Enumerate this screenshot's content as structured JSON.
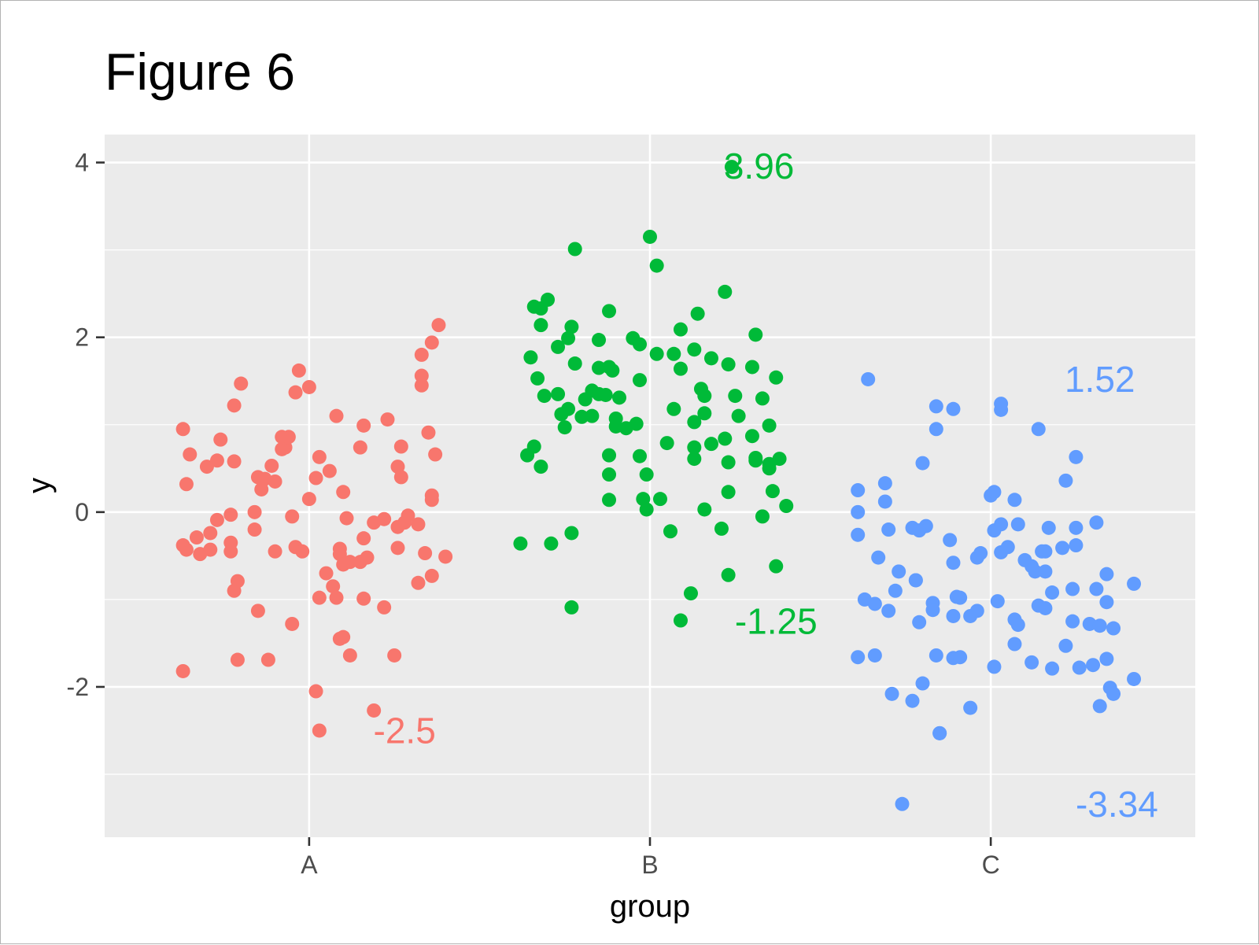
{
  "chart_data": {
    "type": "scatter",
    "title": "Figure 6",
    "xlabel": "group",
    "ylabel": "y",
    "categories": [
      "A",
      "B",
      "C"
    ],
    "ylim": [
      -3.72,
      4.32
    ],
    "yticks": [
      -2,
      0,
      2,
      4
    ],
    "grid": true,
    "legend": "none",
    "series": [
      {
        "category": "A",
        "color": "#F8766D",
        "points": [
          [
            -0.37,
            0.95
          ],
          [
            -0.3,
            0.52
          ],
          [
            -0.27,
            0.59
          ],
          [
            -0.35,
            0.66
          ],
          [
            -0.36,
            0.32
          ],
          [
            -0.26,
            0.83
          ],
          [
            -0.22,
            0.58
          ],
          [
            -0.2,
            1.47
          ],
          [
            -0.22,
            1.22
          ],
          [
            -0.15,
            0.4
          ],
          [
            -0.13,
            0.38
          ],
          [
            -0.14,
            0.26
          ],
          [
            -0.11,
            0.53
          ],
          [
            -0.1,
            0.35
          ],
          [
            -0.07,
            0.74
          ],
          [
            -0.08,
            0.72
          ],
          [
            -0.08,
            0.86
          ],
          [
            -0.06,
            0.86
          ],
          [
            -0.04,
            1.37
          ],
          [
            -0.03,
            1.62
          ],
          [
            0.0,
            1.43
          ],
          [
            0.02,
            0.39
          ],
          [
            0.03,
            0.63
          ],
          [
            0.06,
            0.47
          ],
          [
            0.08,
            1.1
          ],
          [
            0.1,
            0.23
          ],
          [
            0.15,
            0.74
          ],
          [
            0.16,
            0.99
          ],
          [
            0.23,
            1.06
          ],
          [
            0.27,
            0.75
          ],
          [
            0.26,
            0.52
          ],
          [
            0.27,
            0.4
          ],
          [
            0.35,
            0.91
          ],
          [
            0.37,
            0.66
          ],
          [
            0.36,
            0.14
          ],
          [
            0.36,
            0.19
          ],
          [
            0.33,
            1.45
          ],
          [
            0.33,
            1.56
          ],
          [
            0.33,
            1.8
          ],
          [
            0.36,
            1.94
          ],
          [
            0.38,
            2.14
          ],
          [
            -0.37,
            -0.38
          ],
          [
            -0.36,
            -0.43
          ],
          [
            -0.32,
            -0.48
          ],
          [
            -0.29,
            -0.43
          ],
          [
            -0.33,
            -0.29
          ],
          [
            -0.29,
            -0.24
          ],
          [
            -0.27,
            -0.09
          ],
          [
            -0.23,
            -0.03
          ],
          [
            -0.23,
            -0.35
          ],
          [
            -0.23,
            -0.45
          ],
          [
            -0.21,
            -0.79
          ],
          [
            -0.22,
            -0.9
          ],
          [
            -0.16,
            -0.2
          ],
          [
            -0.16,
            0.0
          ],
          [
            -0.1,
            -0.45
          ],
          [
            -0.05,
            -0.05
          ],
          [
            -0.04,
            -0.4
          ],
          [
            -0.02,
            -0.45
          ],
          [
            0.0,
            0.15
          ],
          [
            0.05,
            -0.7
          ],
          [
            0.07,
            -0.85
          ],
          [
            0.08,
            -0.98
          ],
          [
            0.09,
            -0.42
          ],
          [
            0.09,
            -0.48
          ],
          [
            0.1,
            -0.6
          ],
          [
            0.11,
            -0.07
          ],
          [
            0.12,
            -0.57
          ],
          [
            0.15,
            -0.57
          ],
          [
            0.16,
            -0.3
          ],
          [
            0.17,
            -0.52
          ],
          [
            0.19,
            -0.12
          ],
          [
            0.22,
            -0.08
          ],
          [
            0.26,
            -0.17
          ],
          [
            0.28,
            -0.12
          ],
          [
            0.29,
            -0.04
          ],
          [
            0.32,
            -0.14
          ],
          [
            0.34,
            -0.47
          ],
          [
            0.36,
            -0.73
          ],
          [
            0.4,
            -0.51
          ],
          [
            0.26,
            -0.41
          ],
          [
            0.32,
            -0.81
          ],
          [
            -0.15,
            -1.13
          ],
          [
            -0.05,
            -1.28
          ],
          [
            0.03,
            -0.98
          ],
          [
            0.09,
            -1.45
          ],
          [
            0.1,
            -1.43
          ],
          [
            0.12,
            -1.64
          ],
          [
            0.16,
            -0.99
          ],
          [
            0.22,
            -1.09
          ],
          [
            -0.37,
            -1.82
          ],
          [
            -0.21,
            -1.69
          ],
          [
            -0.12,
            -1.69
          ],
          [
            0.02,
            -2.05
          ],
          [
            0.03,
            -2.5
          ],
          [
            0.19,
            -2.27
          ],
          [
            0.25,
            -1.64
          ]
        ]
      },
      {
        "category": "B",
        "color": "#00BA38",
        "points": [
          [
            0.24,
            3.95
          ],
          [
            0.0,
            3.15
          ],
          [
            0.02,
            2.82
          ],
          [
            -0.22,
            3.01
          ],
          [
            0.22,
            2.52
          ],
          [
            -0.32,
            2.33
          ],
          [
            -0.32,
            2.14
          ],
          [
            -0.34,
            2.35
          ],
          [
            -0.3,
            2.43
          ],
          [
            -0.23,
            2.12
          ],
          [
            -0.12,
            2.3
          ],
          [
            -0.05,
            1.99
          ],
          [
            -0.15,
            1.97
          ],
          [
            -0.03,
            1.92
          ],
          [
            -0.24,
            1.99
          ],
          [
            0.09,
            2.09
          ],
          [
            0.14,
            2.27
          ],
          [
            0.31,
            2.03
          ],
          [
            -0.35,
            1.77
          ],
          [
            -0.27,
            1.89
          ],
          [
            -0.22,
            1.7
          ],
          [
            -0.15,
            1.65
          ],
          [
            -0.12,
            1.66
          ],
          [
            -0.11,
            1.62
          ],
          [
            0.02,
            1.81
          ],
          [
            0.07,
            1.81
          ],
          [
            0.13,
            1.86
          ],
          [
            0.18,
            1.76
          ],
          [
            0.23,
            1.69
          ],
          [
            0.3,
            1.66
          ],
          [
            0.37,
            1.54
          ],
          [
            -0.33,
            1.53
          ],
          [
            -0.31,
            1.33
          ],
          [
            -0.27,
            1.35
          ],
          [
            -0.19,
            1.29
          ],
          [
            -0.17,
            1.39
          ],
          [
            -0.15,
            1.35
          ],
          [
            -0.13,
            1.34
          ],
          [
            -0.09,
            1.31
          ],
          [
            -0.03,
            1.51
          ],
          [
            0.09,
            1.64
          ],
          [
            0.15,
            1.41
          ],
          [
            0.16,
            1.33
          ],
          [
            0.25,
            1.33
          ],
          [
            0.33,
            1.3
          ],
          [
            -0.26,
            1.12
          ],
          [
            -0.24,
            1.18
          ],
          [
            -0.2,
            1.09
          ],
          [
            -0.17,
            1.1
          ],
          [
            -0.1,
            1.07
          ],
          [
            -0.1,
            0.98
          ],
          [
            -0.07,
            0.96
          ],
          [
            -0.04,
            1.01
          ],
          [
            0.07,
            1.18
          ],
          [
            0.13,
            1.03
          ],
          [
            0.16,
            1.13
          ],
          [
            0.26,
            1.1
          ],
          [
            -0.25,
            0.97
          ],
          [
            0.35,
            0.99
          ],
          [
            -0.36,
            0.65
          ],
          [
            -0.34,
            0.75
          ],
          [
            -0.32,
            0.52
          ],
          [
            -0.12,
            0.65
          ],
          [
            -0.03,
            0.64
          ],
          [
            0.05,
            0.79
          ],
          [
            0.13,
            0.74
          ],
          [
            0.13,
            0.61
          ],
          [
            0.18,
            0.78
          ],
          [
            0.22,
            0.84
          ],
          [
            0.23,
            0.57
          ],
          [
            0.3,
            0.87
          ],
          [
            0.31,
            0.59
          ],
          [
            0.31,
            0.62
          ],
          [
            0.35,
            0.5
          ],
          [
            0.35,
            0.55
          ],
          [
            0.38,
            0.61
          ],
          [
            -0.12,
            0.43
          ],
          [
            -0.01,
            0.43
          ],
          [
            0.36,
            0.24
          ],
          [
            0.23,
            0.23
          ],
          [
            -0.12,
            0.14
          ],
          [
            -0.02,
            0.15
          ],
          [
            0.03,
            0.15
          ],
          [
            -0.01,
            0.03
          ],
          [
            0.16,
            0.03
          ],
          [
            0.4,
            0.07
          ],
          [
            0.33,
            -0.05
          ],
          [
            0.21,
            -0.19
          ],
          [
            0.06,
            -0.22
          ],
          [
            -0.38,
            -0.36
          ],
          [
            -0.29,
            -0.36
          ],
          [
            -0.23,
            -0.24
          ],
          [
            0.37,
            -0.62
          ],
          [
            0.23,
            -0.72
          ],
          [
            0.12,
            -0.93
          ],
          [
            0.09,
            -1.24
          ],
          [
            -0.23,
            -1.09
          ]
        ]
      },
      {
        "category": "C",
        "color": "#619CFF",
        "points": [
          [
            -0.36,
            1.52
          ],
          [
            -0.16,
            1.21
          ],
          [
            -0.11,
            1.18
          ],
          [
            0.03,
            1.17
          ],
          [
            0.03,
            1.24
          ],
          [
            0.14,
            0.95
          ],
          [
            -0.16,
            0.95
          ],
          [
            -0.2,
            0.56
          ],
          [
            0.25,
            0.63
          ],
          [
            -0.39,
            0.25
          ],
          [
            -0.31,
            0.33
          ],
          [
            -0.31,
            0.12
          ],
          [
            0.0,
            0.19
          ],
          [
            0.01,
            0.23
          ],
          [
            0.07,
            0.14
          ],
          [
            0.22,
            0.36
          ],
          [
            -0.39,
            0.0
          ],
          [
            -0.3,
            -0.2
          ],
          [
            -0.23,
            -0.18
          ],
          [
            -0.19,
            -0.16
          ],
          [
            -0.21,
            -0.21
          ],
          [
            0.01,
            -0.21
          ],
          [
            0.03,
            -0.14
          ],
          [
            0.08,
            -0.14
          ],
          [
            0.17,
            -0.18
          ],
          [
            0.25,
            -0.18
          ],
          [
            0.31,
            -0.12
          ],
          [
            -0.39,
            -0.26
          ],
          [
            -0.33,
            -0.52
          ],
          [
            -0.27,
            -0.68
          ],
          [
            -0.22,
            -0.78
          ],
          [
            -0.11,
            -0.58
          ],
          [
            -0.12,
            -0.32
          ],
          [
            -0.04,
            -0.52
          ],
          [
            -0.03,
            -0.47
          ],
          [
            0.03,
            -0.46
          ],
          [
            0.05,
            -0.4
          ],
          [
            0.1,
            -0.55
          ],
          [
            0.12,
            -0.62
          ],
          [
            0.13,
            -0.68
          ],
          [
            0.15,
            -0.45
          ],
          [
            0.16,
            -0.45
          ],
          [
            0.16,
            -0.68
          ],
          [
            0.21,
            -0.41
          ],
          [
            0.25,
            -0.38
          ],
          [
            0.34,
            -0.71
          ],
          [
            0.42,
            -0.82
          ],
          [
            -0.37,
            -1.0
          ],
          [
            -0.34,
            -1.05
          ],
          [
            -0.3,
            -1.13
          ],
          [
            -0.28,
            -0.9
          ],
          [
            -0.22,
            -0.78
          ],
          [
            -0.17,
            -1.04
          ],
          [
            -0.1,
            -0.97
          ],
          [
            -0.11,
            -1.19
          ],
          [
            -0.09,
            -0.98
          ],
          [
            -0.06,
            -1.19
          ],
          [
            -0.04,
            -1.13
          ],
          [
            0.02,
            -1.02
          ],
          [
            0.07,
            -1.23
          ],
          [
            0.08,
            -1.29
          ],
          [
            0.14,
            -1.07
          ],
          [
            0.16,
            -1.1
          ],
          [
            0.18,
            -0.92
          ],
          [
            0.24,
            -0.88
          ],
          [
            0.24,
            -1.25
          ],
          [
            0.29,
            -1.28
          ],
          [
            0.31,
            -0.88
          ],
          [
            0.32,
            -1.3
          ],
          [
            0.34,
            -1.03
          ],
          [
            0.36,
            -1.33
          ],
          [
            -0.39,
            -1.66
          ],
          [
            -0.34,
            -1.64
          ],
          [
            -0.21,
            -1.26
          ],
          [
            -0.17,
            -1.12
          ],
          [
            -0.16,
            -1.64
          ],
          [
            -0.11,
            -1.67
          ],
          [
            -0.09,
            -1.66
          ],
          [
            0.01,
            -1.77
          ],
          [
            0.07,
            -1.51
          ],
          [
            0.12,
            -1.72
          ],
          [
            0.18,
            -1.79
          ],
          [
            0.22,
            -1.53
          ],
          [
            0.26,
            -1.78
          ],
          [
            0.3,
            -1.75
          ],
          [
            0.34,
            -1.68
          ],
          [
            0.36,
            -2.08
          ],
          [
            0.35,
            -2.01
          ],
          [
            0.32,
            -2.22
          ],
          [
            0.42,
            -1.91
          ],
          [
            -0.29,
            -2.08
          ],
          [
            -0.23,
            -2.16
          ],
          [
            -0.2,
            -1.96
          ],
          [
            -0.15,
            -2.53
          ],
          [
            -0.15,
            -2.53
          ],
          [
            -0.06,
            -2.24
          ],
          [
            -0.26,
            -3.34
          ]
        ]
      }
    ],
    "annotations": [
      {
        "category": "A",
        "x_offset": 0.28,
        "y": -2.5,
        "label": "-2.5",
        "color": "#F8766D"
      },
      {
        "category": "B",
        "x_offset": 0.32,
        "y": 3.96,
        "label": "3.96",
        "color": "#00BA38"
      },
      {
        "category": "B",
        "x_offset": 0.37,
        "y": -1.25,
        "label": "-1.25",
        "color": "#00BA38"
      },
      {
        "category": "C",
        "x_offset": 0.32,
        "y": 1.52,
        "label": "1.52",
        "color": "#619CFF"
      },
      {
        "category": "C",
        "x_offset": 0.37,
        "y": -3.34,
        "label": "-3.34",
        "color": "#619CFF"
      }
    ]
  }
}
